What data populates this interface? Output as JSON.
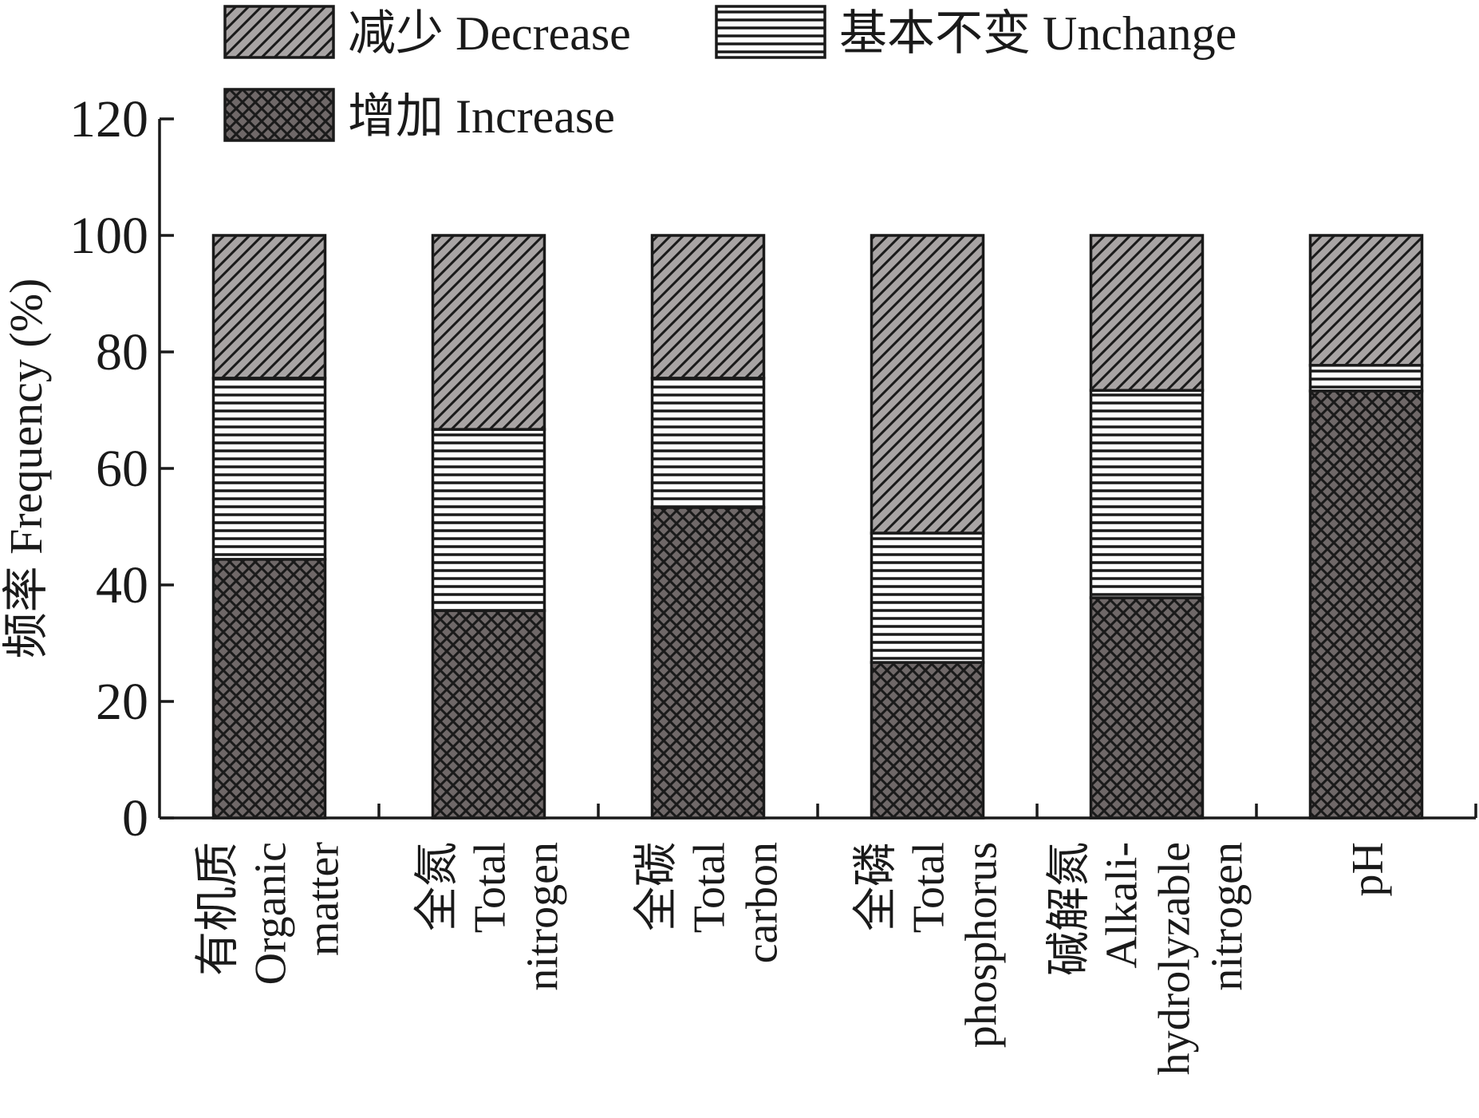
{
  "chart_data": {
    "type": "bar",
    "stacked": true,
    "ylabel": "频率 Frequency (%)",
    "ylim": [
      0,
      120
    ],
    "yticks": [
      0,
      20,
      40,
      60,
      80,
      100,
      120
    ],
    "categories": [
      [
        "有机质",
        "Organic",
        "matter"
      ],
      [
        "全氮",
        "Total",
        "nitrogen"
      ],
      [
        "全碳",
        "Total",
        "carbon"
      ],
      [
        "全磷",
        "Total",
        "phosphorus"
      ],
      [
        "碱解氮",
        "Alkali-",
        "hydrolyzable",
        "nitrogen"
      ],
      [
        "pH"
      ]
    ],
    "series": [
      {
        "name": "增加 Increase",
        "values": [
          44.4,
          35.6,
          53.3,
          26.7,
          37.8,
          73.3
        ],
        "pattern": "crosshatch",
        "color": "#6f6868"
      },
      {
        "name": "基本不变 Unchange",
        "values": [
          31.1,
          31.1,
          22.2,
          22.2,
          35.6,
          4.4
        ],
        "pattern": "horizontal",
        "color": "#ffffff"
      },
      {
        "name": "减少 Decrease",
        "values": [
          24.5,
          33.3,
          24.5,
          51.1,
          26.6,
          22.3
        ],
        "pattern": "diagonal",
        "color": "#a8a4a4"
      }
    ],
    "legend": {
      "placement": "top-left",
      "rows": [
        [
          "减少 Decrease",
          "基本不变 Unchange"
        ],
        [
          "增加 Increase"
        ]
      ]
    },
    "grid": false
  }
}
